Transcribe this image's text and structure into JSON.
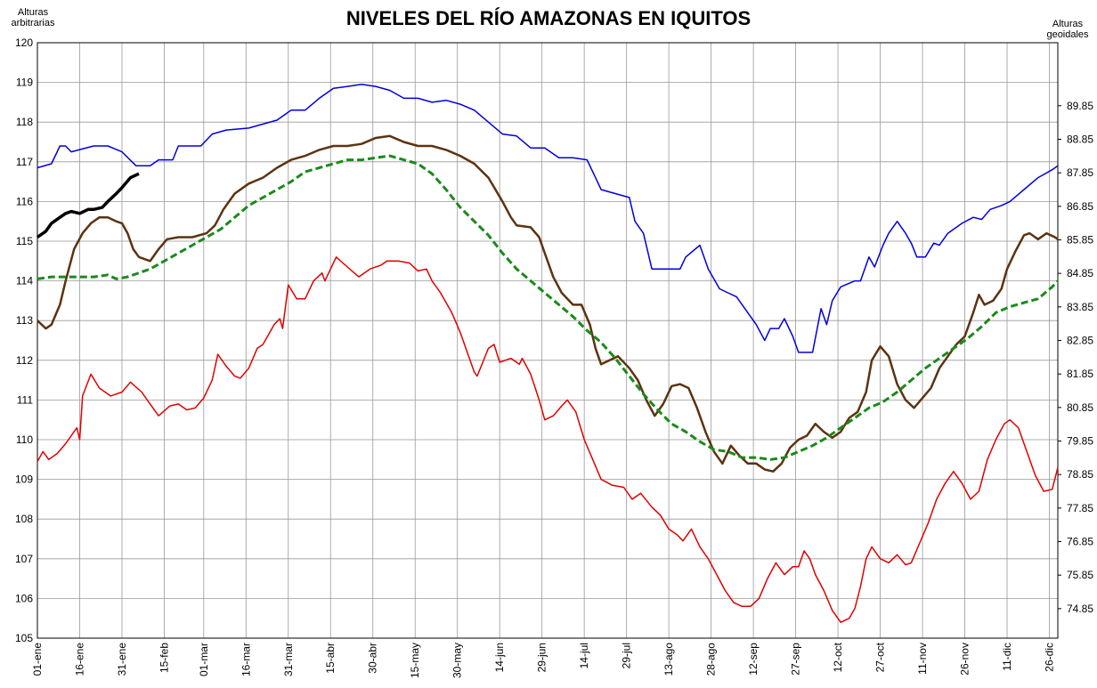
{
  "chart_data": {
    "type": "line",
    "title": "NIVELES DEL RÍO AMAZONAS EN IQUITOS",
    "y_label": "Alturas arbitrarias",
    "y2_label": "Alturas geoidales",
    "xlim": [
      0,
      362
    ],
    "xticks": [
      {
        "value": 0,
        "label": "01-ene"
      },
      {
        "value": 15,
        "label": "16-ene"
      },
      {
        "value": 30,
        "label": "31-ene"
      },
      {
        "value": 45,
        "label": "15-feb"
      },
      {
        "value": 59,
        "label": "01-mar"
      },
      {
        "value": 74,
        "label": "16-mar"
      },
      {
        "value": 89,
        "label": "31-mar"
      },
      {
        "value": 104,
        "label": "15-abr"
      },
      {
        "value": 119,
        "label": "30-abr"
      },
      {
        "value": 134,
        "label": "15-may"
      },
      {
        "value": 149,
        "label": "30-may"
      },
      {
        "value": 164,
        "label": "14-jun"
      },
      {
        "value": 179,
        "label": "29-jun"
      },
      {
        "value": 194,
        "label": "14-jul"
      },
      {
        "value": 209,
        "label": "29-jul"
      },
      {
        "value": 224,
        "label": "13-ago"
      },
      {
        "value": 239,
        "label": "28-ago"
      },
      {
        "value": 254,
        "label": "12-sep"
      },
      {
        "value": 269,
        "label": "27-sep"
      },
      {
        "value": 284,
        "label": "12-oct"
      },
      {
        "value": 299,
        "label": "27-oct"
      },
      {
        "value": 314,
        "label": "11-nov"
      },
      {
        "value": 329,
        "label": "26-nov"
      },
      {
        "value": 344,
        "label": "11-dic"
      },
      {
        "value": 359,
        "label": "26-dic"
      }
    ],
    "ylim": [
      105,
      120
    ],
    "yticks": [
      105,
      106,
      107,
      108,
      109,
      110,
      111,
      112,
      113,
      114,
      115,
      116,
      117,
      118,
      119,
      120
    ],
    "y2lim": [
      73.97,
      91.73
    ],
    "y2ticks": [
      74.85,
      75.85,
      76.85,
      77.85,
      78.85,
      79.85,
      80.85,
      81.85,
      82.85,
      83.85,
      84.85,
      85.85,
      86.85,
      87.85,
      88.85,
      89.85
    ],
    "grid": true,
    "series": [
      {
        "color": "#0000dd",
        "width": 1.5,
        "x": [
          0,
          5,
          8,
          10,
          12,
          20,
          25,
          30,
          35,
          40,
          43,
          48,
          50,
          55,
          58,
          62,
          67,
          75,
          80,
          85,
          90,
          95,
          100,
          105,
          110,
          115,
          120,
          125,
          130,
          135,
          140,
          145,
          150,
          155,
          160,
          165,
          170,
          175,
          180,
          185,
          190,
          195,
          198,
          200,
          205,
          210,
          212,
          215,
          218,
          222,
          228,
          230,
          235,
          238,
          242,
          245,
          248,
          252,
          255,
          258,
          260,
          263,
          265,
          268,
          270,
          275,
          278,
          280,
          282,
          285,
          290,
          292,
          295,
          297,
          300,
          302,
          305,
          308,
          310,
          312,
          315,
          318,
          320,
          323,
          328,
          332,
          335,
          338,
          342,
          345,
          350,
          355,
          360,
          362
        ],
        "values": [
          116.85,
          116.95,
          117.4,
          117.4,
          117.25,
          117.4,
          117.4,
          117.25,
          116.9,
          116.9,
          117.05,
          117.05,
          117.4,
          117.4,
          117.4,
          117.7,
          117.8,
          117.85,
          117.95,
          118.05,
          118.3,
          118.3,
          118.6,
          118.85,
          118.9,
          118.95,
          118.9,
          118.8,
          118.6,
          118.6,
          118.5,
          118.55,
          118.45,
          118.3,
          118.0,
          117.7,
          117.65,
          117.35,
          117.35,
          117.1,
          117.1,
          117.05,
          116.6,
          116.3,
          116.2,
          116.1,
          115.5,
          115.2,
          114.3,
          114.3,
          114.3,
          114.6,
          114.9,
          114.3,
          113.8,
          113.7,
          113.6,
          113.2,
          112.9,
          112.5,
          112.8,
          112.8,
          113.05,
          112.6,
          112.2,
          112.2,
          113.3,
          112.9,
          113.5,
          113.85,
          114.0,
          114.0,
          114.6,
          114.35,
          114.9,
          115.2,
          115.5,
          115.2,
          114.95,
          114.6,
          114.6,
          114.95,
          114.9,
          115.2,
          115.45,
          115.6,
          115.55,
          115.8,
          115.9,
          116.0,
          116.3,
          116.6,
          116.8,
          116.9
        ]
      },
      {
        "color": "#000000",
        "width": 3.5,
        "x": [
          0,
          3,
          5,
          8,
          10,
          12,
          15,
          18,
          20,
          23,
          25,
          28,
          30,
          33,
          36
        ],
        "values": [
          115.1,
          115.25,
          115.45,
          115.6,
          115.7,
          115.75,
          115.7,
          115.8,
          115.8,
          115.85,
          116.0,
          116.2,
          116.35,
          116.6,
          116.7
        ]
      },
      {
        "color": "#5c3310",
        "width": 2.5,
        "x": [
          0,
          3,
          5,
          8,
          10,
          13,
          16,
          19,
          22,
          25,
          28,
          30,
          32,
          34,
          36,
          40,
          43,
          46,
          50,
          55,
          60,
          63,
          66,
          70,
          75,
          80,
          85,
          90,
          95,
          100,
          105,
          110,
          115,
          120,
          125,
          130,
          135,
          140,
          145,
          150,
          155,
          160,
          165,
          168,
          170,
          175,
          178,
          180,
          183,
          186,
          190,
          193,
          196,
          198,
          200,
          203,
          206,
          210,
          213,
          216,
          219,
          222,
          225,
          228,
          231,
          234,
          237,
          240,
          243,
          246,
          249,
          252,
          255,
          258,
          261,
          264,
          267,
          270,
          273,
          276,
          279,
          282,
          285,
          288,
          291,
          294,
          296,
          299,
          302,
          305,
          308,
          311,
          314,
          317,
          320,
          323,
          326,
          329,
          332,
          334,
          336,
          339,
          342,
          344,
          347,
          350,
          352,
          355,
          358,
          361,
          362
        ],
        "values": [
          113.0,
          112.8,
          112.9,
          113.4,
          114.0,
          114.8,
          115.2,
          115.45,
          115.6,
          115.6,
          115.5,
          115.45,
          115.2,
          114.8,
          114.6,
          114.5,
          114.8,
          115.05,
          115.1,
          115.1,
          115.2,
          115.4,
          115.8,
          116.2,
          116.45,
          116.6,
          116.85,
          117.05,
          117.15,
          117.3,
          117.4,
          117.4,
          117.45,
          117.6,
          117.65,
          117.5,
          117.4,
          117.4,
          117.3,
          117.15,
          116.95,
          116.6,
          116.0,
          115.6,
          115.4,
          115.35,
          115.1,
          114.7,
          114.1,
          113.7,
          113.4,
          113.4,
          112.9,
          112.3,
          111.9,
          112.0,
          112.1,
          111.8,
          111.5,
          111.0,
          110.6,
          110.9,
          111.35,
          111.4,
          111.3,
          110.8,
          110.2,
          109.7,
          109.4,
          109.85,
          109.6,
          109.4,
          109.4,
          109.25,
          109.2,
          109.4,
          109.8,
          110.0,
          110.1,
          110.4,
          110.2,
          110.05,
          110.2,
          110.55,
          110.7,
          111.2,
          112.0,
          112.35,
          112.1,
          111.4,
          111.0,
          110.8,
          111.05,
          111.3,
          111.8,
          112.1,
          112.4,
          112.6,
          113.2,
          113.65,
          113.4,
          113.5,
          113.8,
          114.3,
          114.75,
          115.15,
          115.2,
          115.05,
          115.2,
          115.1,
          115.05
        ]
      },
      {
        "color": "#1a8a1a",
        "width": 3,
        "dashed": true,
        "x": [
          0,
          5,
          15,
          20,
          25,
          28,
          32,
          40,
          45,
          50,
          55,
          60,
          65,
          70,
          75,
          80,
          85,
          90,
          95,
          100,
          105,
          110,
          115,
          120,
          125,
          130,
          135,
          140,
          145,
          150,
          155,
          160,
          165,
          170,
          175,
          180,
          185,
          190,
          195,
          200,
          205,
          210,
          215,
          220,
          225,
          230,
          235,
          240,
          245,
          250,
          255,
          260,
          265,
          270,
          275,
          280,
          285,
          290,
          295,
          300,
          305,
          310,
          315,
          320,
          325,
          330,
          335,
          340,
          345,
          350,
          355,
          360,
          362
        ],
        "values": [
          114.05,
          114.1,
          114.1,
          114.1,
          114.15,
          114.05,
          114.1,
          114.3,
          114.5,
          114.7,
          114.9,
          115.1,
          115.3,
          115.6,
          115.9,
          116.1,
          116.3,
          116.5,
          116.75,
          116.85,
          116.95,
          117.05,
          117.05,
          117.1,
          117.15,
          117.05,
          116.95,
          116.7,
          116.3,
          115.85,
          115.5,
          115.15,
          114.7,
          114.3,
          114.0,
          113.7,
          113.4,
          113.1,
          112.75,
          112.45,
          112.05,
          111.6,
          111.15,
          110.75,
          110.4,
          110.2,
          109.95,
          109.75,
          109.7,
          109.55,
          109.55,
          109.5,
          109.55,
          109.7,
          109.85,
          110.05,
          110.3,
          110.55,
          110.8,
          110.95,
          111.2,
          111.5,
          111.8,
          112.05,
          112.3,
          112.55,
          112.85,
          113.2,
          113.35,
          113.45,
          113.55,
          113.85,
          114.0
        ]
      },
      {
        "color": "#e00000",
        "width": 1.5,
        "x": [
          0,
          2,
          4,
          7,
          10,
          14,
          15,
          16,
          19,
          22,
          26,
          30,
          33,
          37,
          40,
          43,
          47,
          50,
          53,
          56,
          59,
          62,
          64,
          67,
          70,
          72,
          75,
          78,
          80,
          84,
          86,
          87,
          89,
          92,
          95,
          98,
          101,
          102,
          106,
          110,
          114,
          118,
          122,
          124,
          128,
          132,
          135,
          138,
          140,
          143,
          147,
          150,
          152,
          155,
          156,
          158,
          160,
          162,
          164,
          166,
          168,
          171,
          172,
          175,
          178,
          180,
          183,
          186,
          188,
          191,
          194,
          197,
          200,
          204,
          208,
          211,
          214,
          218,
          221,
          224,
          227,
          229,
          232,
          235,
          238,
          241,
          244,
          247,
          250,
          253,
          256,
          259,
          262,
          265,
          268,
          270,
          272,
          274,
          276,
          279,
          282,
          285,
          288,
          290,
          292,
          294,
          296,
          299,
          302,
          305,
          308,
          310,
          313,
          316,
          319,
          322,
          325,
          328,
          331,
          334,
          337,
          340,
          343,
          345,
          348,
          351,
          354,
          357,
          360,
          362
        ],
        "values": [
          109.45,
          109.7,
          109.5,
          109.65,
          109.9,
          110.3,
          110.0,
          111.1,
          111.65,
          111.3,
          111.1,
          111.2,
          111.45,
          111.2,
          110.9,
          110.6,
          110.85,
          110.9,
          110.75,
          110.8,
          111.05,
          111.5,
          112.15,
          111.85,
          111.6,
          111.55,
          111.8,
          112.3,
          112.4,
          112.9,
          113.05,
          112.8,
          113.9,
          113.55,
          113.55,
          114.0,
          114.2,
          114.0,
          114.6,
          114.35,
          114.1,
          114.3,
          114.4,
          114.5,
          114.5,
          114.45,
          114.25,
          114.3,
          114.0,
          113.7,
          113.2,
          112.7,
          112.3,
          111.7,
          111.6,
          111.95,
          112.3,
          112.4,
          111.95,
          112.0,
          112.05,
          111.9,
          112.05,
          111.65,
          111.0,
          110.5,
          110.6,
          110.85,
          111.0,
          110.7,
          110.0,
          109.5,
          109.0,
          108.85,
          108.8,
          108.5,
          108.65,
          108.3,
          108.1,
          107.75,
          107.6,
          107.45,
          107.75,
          107.3,
          107.0,
          106.6,
          106.2,
          105.9,
          105.8,
          105.8,
          106.0,
          106.5,
          106.9,
          106.6,
          106.8,
          106.8,
          107.2,
          107.0,
          106.6,
          106.2,
          105.7,
          105.4,
          105.5,
          105.75,
          106.3,
          107.0,
          107.3,
          107.0,
          106.9,
          107.1,
          106.85,
          106.9,
          107.4,
          107.9,
          108.5,
          108.9,
          109.2,
          108.9,
          108.5,
          108.7,
          109.5,
          110.0,
          110.4,
          110.5,
          110.3,
          109.7,
          109.1,
          108.7,
          108.75,
          109.3
        ]
      }
    ]
  }
}
